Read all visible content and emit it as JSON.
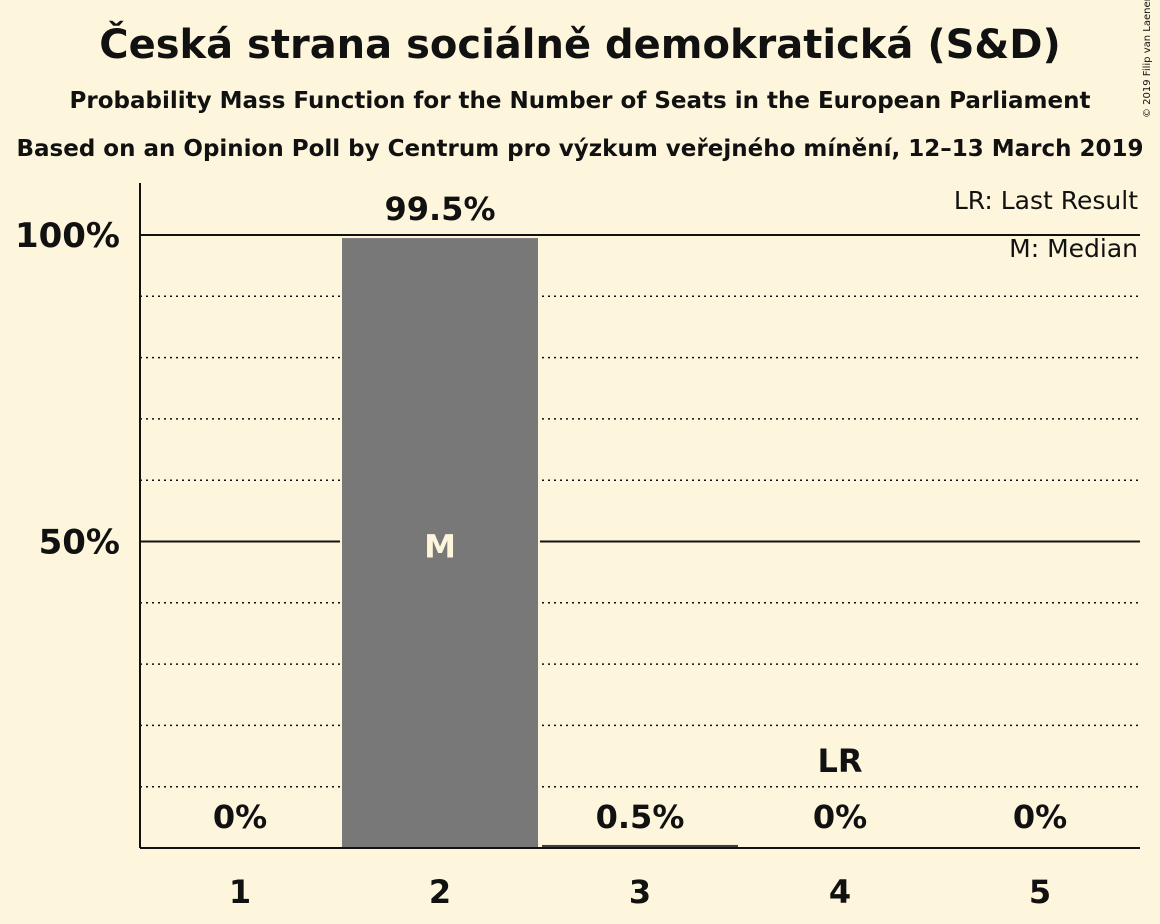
{
  "header": {
    "title": "Česká strana sociálně demokratická (S&D)",
    "subtitle": "Probability Mass Function for the Number of Seats in the European Parliament",
    "subtitle2": "Based on an Opinion Poll by Centrum pro výzkum veřejného mínění, 12–13 March 2019",
    "copyright": "© 2019 Filip van Laenen"
  },
  "legend": {
    "last_result": "LR: Last Result",
    "median": "M: Median",
    "placement": "top-right"
  },
  "chart_data": {
    "type": "bar",
    "title": "Česká strana sociálně demokratická (S&D)",
    "categories": [
      "1",
      "2",
      "3",
      "4",
      "5"
    ],
    "values": [
      0,
      99.5,
      0.5,
      0,
      0
    ],
    "value_labels": [
      "0%",
      "99.5%",
      "0.5%",
      "0%",
      "0%"
    ],
    "xlabel": "",
    "ylabel": "",
    "ylim": [
      0,
      100
    ],
    "yticks": [
      {
        "value": 50,
        "label": "50%"
      },
      {
        "value": 100,
        "label": "100%"
      }
    ],
    "minor_gridlines": [
      10,
      20,
      30,
      40,
      60,
      70,
      80,
      90
    ],
    "grid": true,
    "median_category": "2",
    "median_marker": "M",
    "last_result_category": "4",
    "last_result_marker": "LR",
    "colors": {
      "background": "#fdf6dc",
      "bar_main": "#787878",
      "bar_small": "#404040",
      "text": "#111111"
    }
  }
}
